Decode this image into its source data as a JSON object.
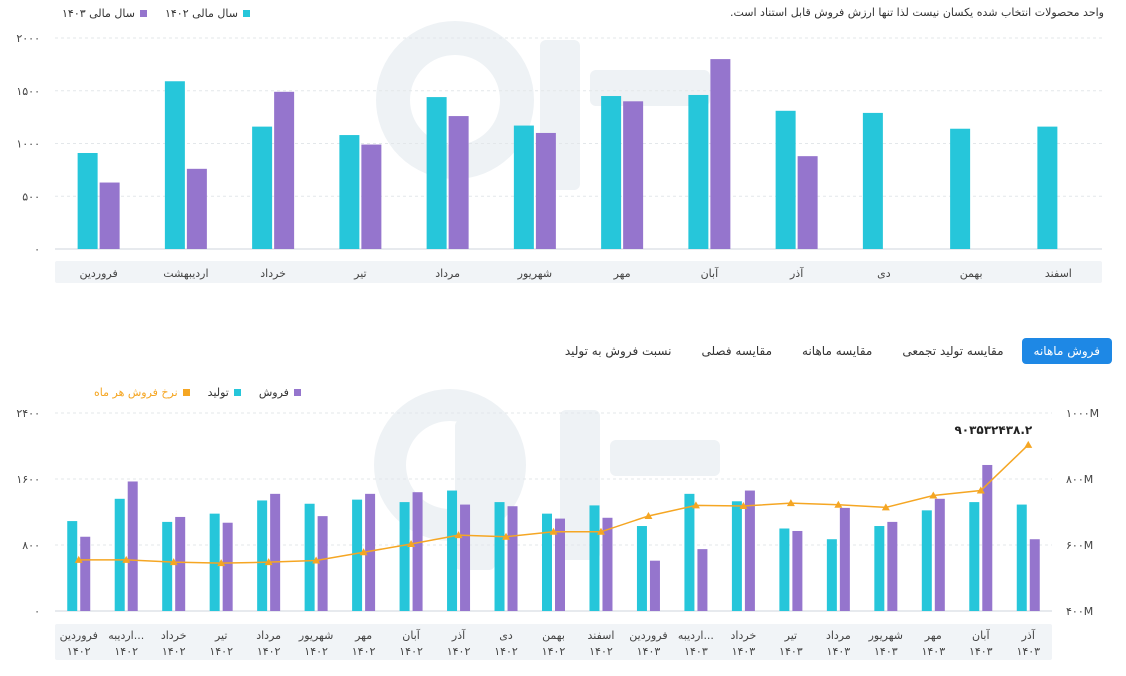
{
  "colors": {
    "cyan": "#26c6da",
    "purple": "#9575cd",
    "orange": "#f5a623",
    "active_tab": "#1e88e5"
  },
  "top_chart": {
    "note": "واحد محصولات انتخاب شده یکسان نیست لذا تنها ارزش فروش قابل استناد است.",
    "legend": {
      "series_1403": "سال مالی ۱۴۰۳",
      "series_1402": "سال مالی ۱۴۰۲"
    },
    "y_ticks": [
      "۰",
      "۵۰۰",
      "۱۰۰۰",
      "۱۵۰۰",
      "۲۰۰۰"
    ]
  },
  "tabs": [
    {
      "label": "فروش ماهانه",
      "active": true
    },
    {
      "label": "مقایسه تولید تجمعی",
      "active": false
    },
    {
      "label": "مقایسه ماهانه",
      "active": false
    },
    {
      "label": "مقایسه فصلی",
      "active": false
    },
    {
      "label": "نسبت فروش به تولید",
      "active": false
    }
  ],
  "bottom_chart": {
    "legend": {
      "sales": "فروش",
      "production": "تولید",
      "rate": "نرخ فروش هر ماه"
    },
    "y_left_ticks": [
      "۰",
      "۸۰۰",
      "۱۶۰۰",
      "۲۴۰۰"
    ],
    "y_right_ticks": [
      "۴۰۰M",
      "۶۰۰M",
      "۸۰۰M",
      "۱۰۰۰M"
    ],
    "last_point_label": "۹۰۳۵۳۲۴۳۸.۲"
  },
  "chart_data": [
    {
      "type": "bar",
      "categories": [
        "فروردین",
        "اردیبهشت",
        "خرداد",
        "تیر",
        "مرداد",
        "شهریور",
        "مهر",
        "آبان",
        "آذر",
        "دی",
        "بهمن",
        "اسفند"
      ],
      "series": [
        {
          "name": "سال مالی ۱۴۰۲",
          "color": "#26c6da",
          "values": [
            910,
            1590,
            1160,
            1080,
            1440,
            1170,
            1450,
            1460,
            1310,
            1290,
            1140,
            1160
          ]
        },
        {
          "name": "سال مالی ۱۴۰۳",
          "color": "#9575cd",
          "values": [
            630,
            760,
            1490,
            990,
            1260,
            1100,
            1400,
            1800,
            880,
            null,
            null,
            null
          ]
        }
      ],
      "ylim": [
        0,
        2000
      ]
    },
    {
      "type": "bar",
      "categories": [
        "فروردین ۱۴۰۲",
        "اردیبه... ۱۴۰۲",
        "خرداد ۱۴۰۲",
        "تیر ۱۴۰۲",
        "مرداد ۱۴۰۲",
        "شهریور ۱۴۰۲",
        "مهر ۱۴۰۲",
        "آبان ۱۴۰۲",
        "آذر ۱۴۰۲",
        "دی ۱۴۰۲",
        "بهمن ۱۴۰۲",
        "اسفند ۱۴۰۲",
        "فروردین ۱۴۰۳",
        "اردیبه... ۱۴۰۳",
        "خرداد ۱۴۰۳",
        "تیر ۱۴۰۳",
        "مرداد ۱۴۰۳",
        "شهریور ۱۴۰۳",
        "مهر ۱۴۰۳",
        "آبان ۱۴۰۳",
        "آذر ۱۴۰۳"
      ],
      "series": [
        {
          "name": "تولید",
          "color": "#26c6da",
          "axis": "left",
          "values": [
            1090,
            1360,
            1080,
            1180,
            1340,
            1300,
            1350,
            1320,
            1460,
            1320,
            1180,
            1280,
            1030,
            1420,
            1330,
            1000,
            870,
            1030,
            1220,
            1320,
            1290
          ]
        },
        {
          "name": "فروش",
          "color": "#9575cd",
          "axis": "left",
          "values": [
            900,
            1570,
            1140,
            1070,
            1420,
            1150,
            1420,
            1440,
            1290,
            1270,
            1120,
            1130,
            610,
            750,
            1460,
            970,
            1250,
            1080,
            1360,
            1770,
            870
          ]
        },
        {
          "name": "نرخ فروش هر ماه",
          "color": "#f5a623",
          "axis": "right",
          "type": "line",
          "values": [
            555,
            555,
            548,
            545,
            548,
            553,
            578,
            603,
            630,
            625,
            640,
            640,
            688,
            720,
            718,
            727,
            722,
            714,
            750,
            765,
            903.5
          ]
        }
      ],
      "ylim_left": [
        0,
        2400
      ],
      "ylim_right": [
        400,
        1000
      ]
    }
  ]
}
